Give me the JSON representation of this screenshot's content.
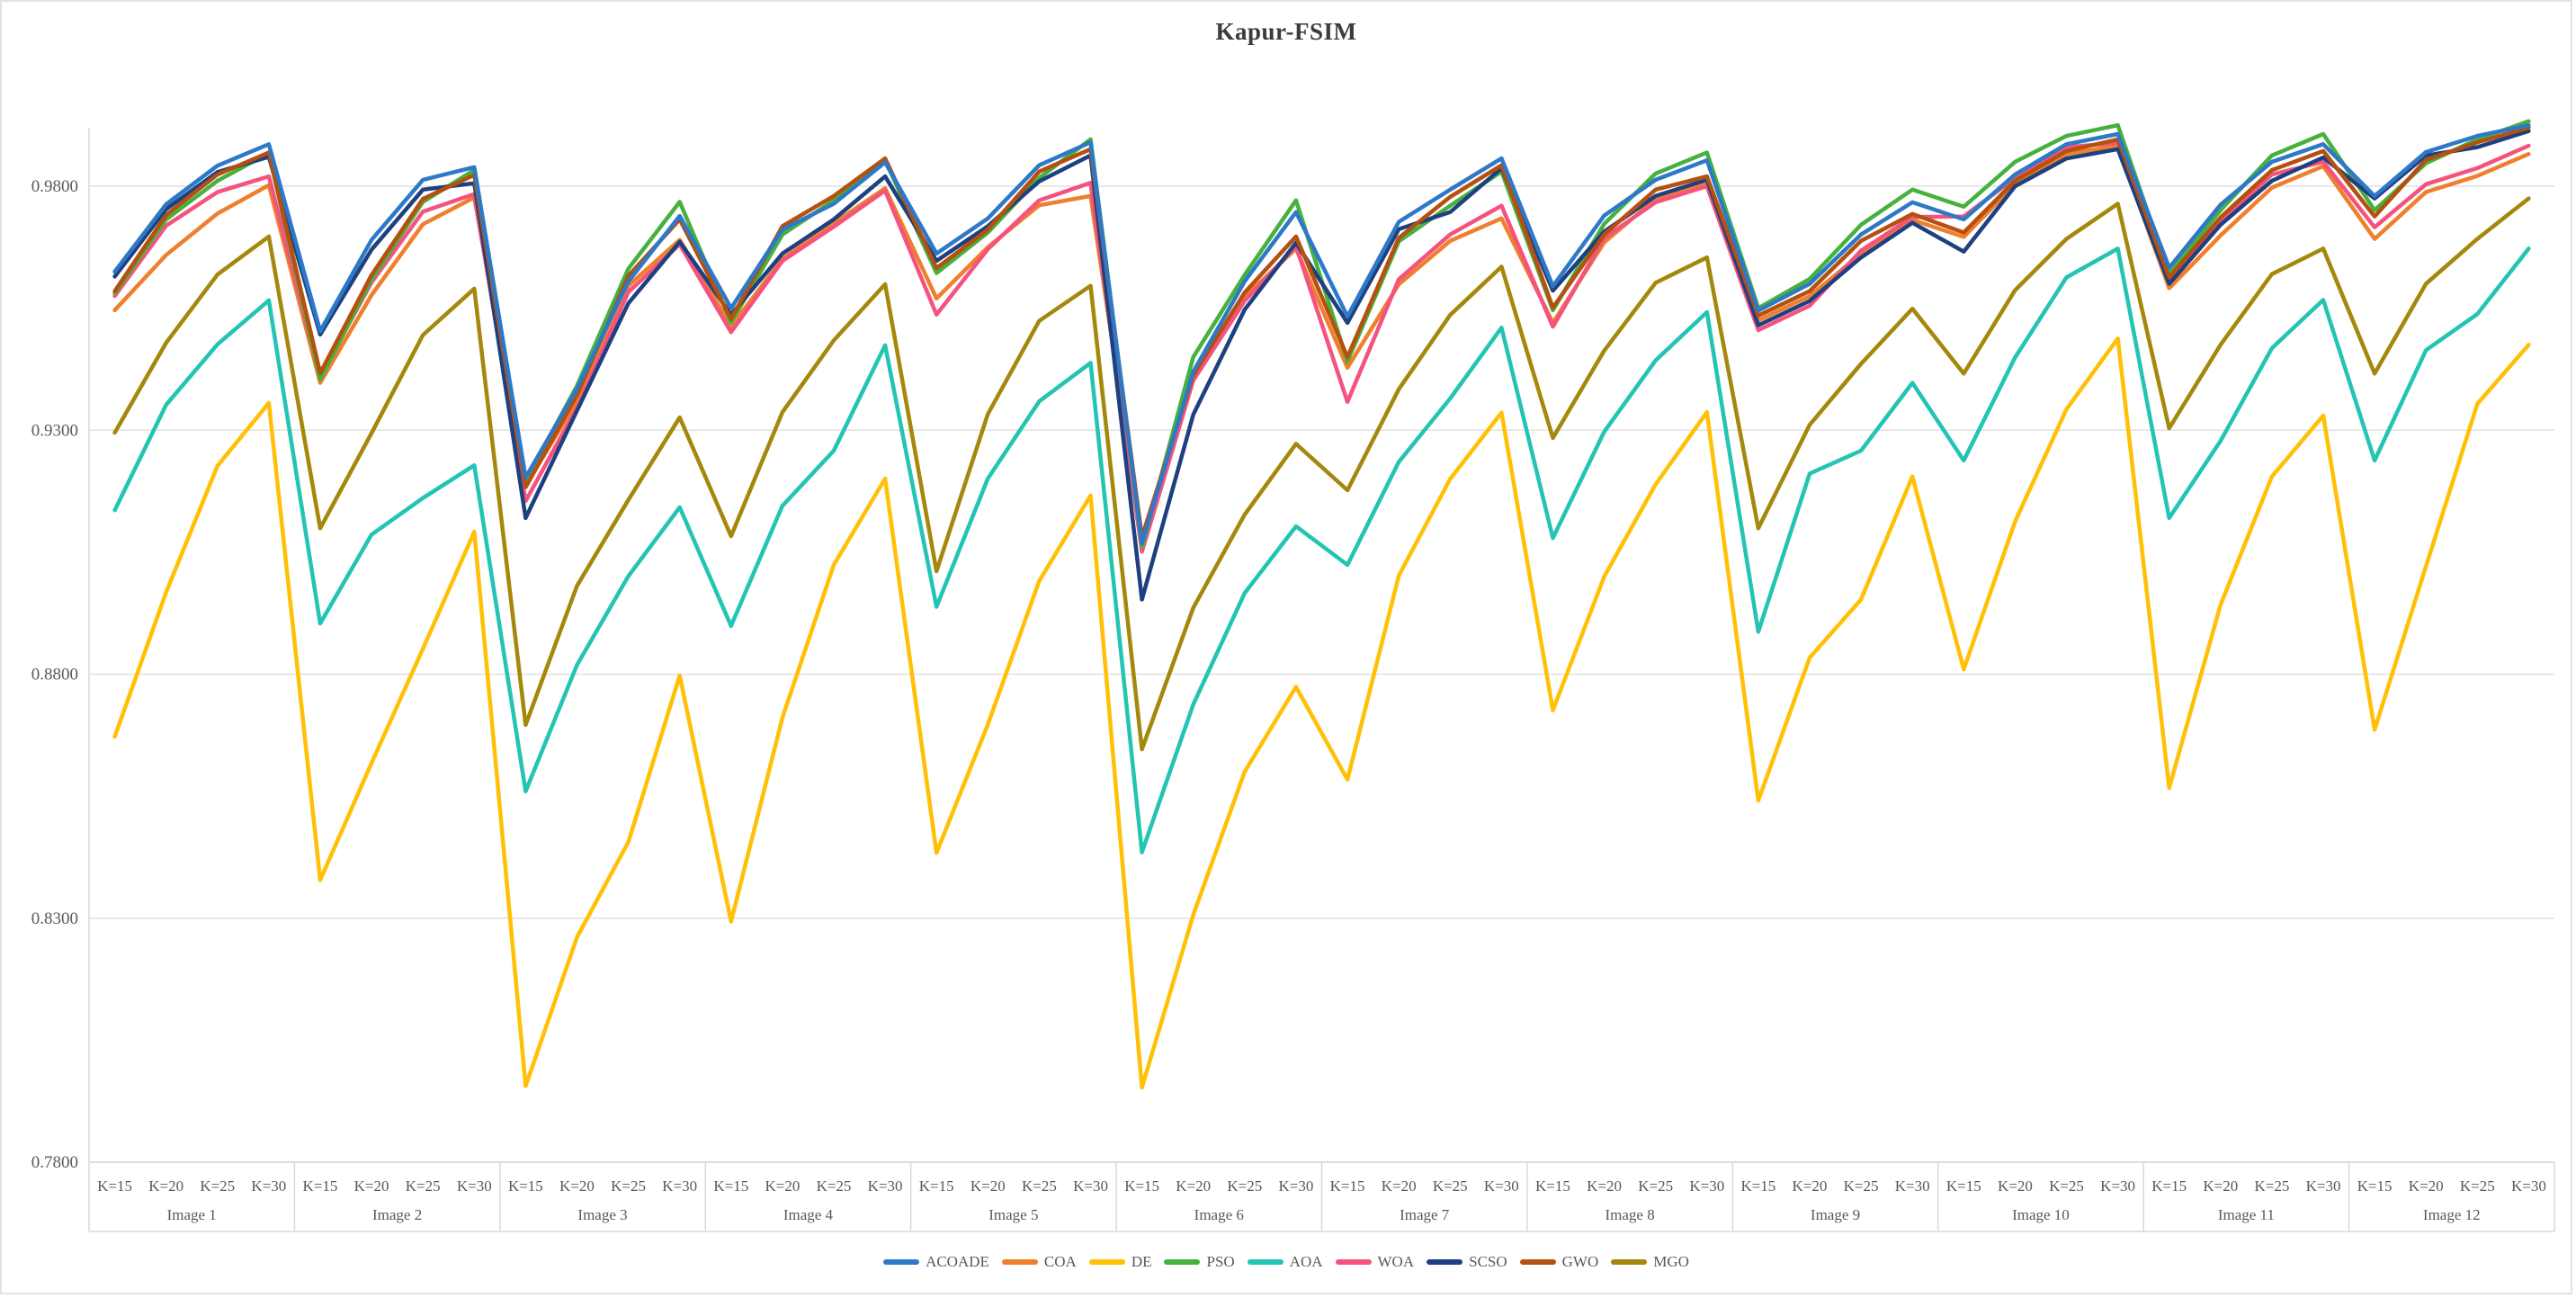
{
  "chart_data": {
    "type": "line",
    "title": "Kapur-FSIM",
    "grid": true,
    "legend_position": "bottom",
    "y_axis": {
      "min": 0.78,
      "max": 0.995,
      "ticks": [
        {
          "label": "0.9800",
          "value": 0.98
        },
        {
          "label": "0.9300",
          "value": 0.93
        },
        {
          "label": "0.8800",
          "value": 0.88
        },
        {
          "label": "0.8300",
          "value": 0.83
        },
        {
          "label": "0.7800",
          "value": 0.78
        }
      ]
    },
    "x_axis": {
      "k_labels": [
        "K=15",
        "K=20",
        "K=25",
        "K=30"
      ],
      "groups": [
        "Image 1",
        "Image 2",
        "Image 3",
        "Image 4",
        "Image 5",
        "Image 6",
        "Image 7",
        "Image 8",
        "Image 9",
        "Image 10",
        "Image 11",
        "Image 12"
      ]
    },
    "series": [
      {
        "name": "ACOADE",
        "color": "#2E79C7",
        "values": [
          0.9625,
          0.9763,
          0.9842,
          0.9886,
          0.9503,
          0.969,
          0.9813,
          0.9839,
          0.9203,
          0.9385,
          0.9605,
          0.9739,
          0.955,
          0.9711,
          0.9764,
          0.9849,
          0.9662,
          0.9734,
          0.9843,
          0.989,
          0.9068,
          0.942,
          0.9605,
          0.9747,
          0.9533,
          0.9727,
          0.9793,
          0.9857,
          0.9595,
          0.974,
          0.9813,
          0.9853,
          0.9545,
          0.96,
          0.9701,
          0.9767,
          0.9732,
          0.9824,
          0.9886,
          0.9907,
          0.9633,
          0.9762,
          0.985,
          0.9886,
          0.978,
          0.987,
          0.9903,
          0.9925
        ]
      },
      {
        "name": "COA",
        "color": "#F07F2D",
        "values": [
          0.9546,
          0.9659,
          0.9744,
          0.9802,
          0.9397,
          0.9577,
          0.9722,
          0.9777,
          0.9187,
          0.9359,
          0.9596,
          0.969,
          0.9513,
          0.9651,
          0.9724,
          0.9796,
          0.957,
          0.9675,
          0.9761,
          0.978,
          0.9072,
          0.9407,
          0.9573,
          0.9672,
          0.9428,
          0.9599,
          0.9688,
          0.9734,
          0.952,
          0.9685,
          0.9774,
          0.9807,
          0.9525,
          0.9575,
          0.9661,
          0.9731,
          0.9696,
          0.9804,
          0.9866,
          0.9883,
          0.9591,
          0.9699,
          0.9797,
          0.9841,
          0.9692,
          0.9788,
          0.9821,
          0.9866
        ]
      },
      {
        "name": "DE",
        "color": "#FFC005",
        "values": [
          0.8672,
          0.8968,
          0.9227,
          0.9356,
          0.8378,
          0.8618,
          0.8852,
          0.9092,
          0.7956,
          0.8261,
          0.8456,
          0.8797,
          0.8293,
          0.8711,
          0.9024,
          0.9201,
          0.8434,
          0.8697,
          0.8991,
          0.9166,
          0.7953,
          0.8307,
          0.86,
          0.8774,
          0.8584,
          0.9002,
          0.92,
          0.9336,
          0.8726,
          0.9,
          0.9189,
          0.9337,
          0.8541,
          0.8834,
          0.8953,
          0.9205,
          0.881,
          0.9113,
          0.9343,
          0.9488,
          0.8567,
          0.8942,
          0.9205,
          0.933,
          0.8686,
          0.9021,
          0.9354,
          0.9475
        ]
      },
      {
        "name": "PSO",
        "color": "#46B13F",
        "values": [
          0.9581,
          0.9732,
          0.9811,
          0.9868,
          0.9404,
          0.9609,
          0.9768,
          0.9833,
          0.9196,
          0.9391,
          0.9631,
          0.9768,
          0.9521,
          0.9701,
          0.9771,
          0.9853,
          0.9622,
          0.9705,
          0.9817,
          0.9896,
          0.9061,
          0.945,
          0.9618,
          0.9771,
          0.9441,
          0.9687,
          0.976,
          0.983,
          0.9546,
          0.9723,
          0.9826,
          0.9869,
          0.955,
          0.961,
          0.9721,
          0.9793,
          0.9758,
          0.985,
          0.9903,
          0.9925,
          0.962,
          0.9751,
          0.9863,
          0.9907,
          0.9751,
          0.9847,
          0.9896,
          0.9933
        ]
      },
      {
        "name": "AOA",
        "color": "#23C4B4",
        "values": [
          0.9136,
          0.9352,
          0.9476,
          0.9566,
          0.8904,
          0.9086,
          0.9161,
          0.9228,
          0.856,
          0.8819,
          0.9001,
          0.9142,
          0.8899,
          0.9145,
          0.9258,
          0.9474,
          0.8938,
          0.9201,
          0.9359,
          0.9438,
          0.8435,
          0.8738,
          0.8966,
          0.9103,
          0.9024,
          0.9235,
          0.9365,
          0.951,
          0.9079,
          0.9297,
          0.9443,
          0.9542,
          0.8887,
          0.9211,
          0.9258,
          0.9397,
          0.9238,
          0.9449,
          0.9613,
          0.9672,
          0.912,
          0.9278,
          0.9468,
          0.9567,
          0.9238,
          0.9464,
          0.9538,
          0.9672
        ]
      },
      {
        "name": "WOA",
        "color": "#F4537E",
        "values": [
          0.9575,
          0.9719,
          0.9788,
          0.982,
          0.941,
          0.9603,
          0.9748,
          0.9784,
          0.9155,
          0.9346,
          0.9583,
          0.9681,
          0.9501,
          0.9647,
          0.9717,
          0.9791,
          0.9537,
          0.9671,
          0.9771,
          0.9807,
          0.9051,
          0.9402,
          0.9565,
          0.9677,
          0.9358,
          0.9609,
          0.9701,
          0.976,
          0.9512,
          0.9694,
          0.9767,
          0.98,
          0.9505,
          0.9555,
          0.9668,
          0.9737,
          0.9738,
          0.9817,
          0.988,
          0.9889,
          0.9607,
          0.9728,
          0.9824,
          0.985,
          0.9716,
          0.9804,
          0.9837,
          0.9883
        ]
      },
      {
        "name": "SCSO",
        "color": "#1E4080",
        "values": [
          0.9615,
          0.9753,
          0.9829,
          0.986,
          0.9496,
          0.967,
          0.9793,
          0.9806,
          0.912,
          0.934,
          0.956,
          0.9686,
          0.9537,
          0.9662,
          0.9732,
          0.982,
          0.9647,
          0.9718,
          0.981,
          0.9863,
          0.8953,
          0.9332,
          0.9547,
          0.9684,
          0.952,
          0.9712,
          0.9747,
          0.9837,
          0.9586,
          0.9707,
          0.978,
          0.9813,
          0.9515,
          0.9565,
          0.9654,
          0.9725,
          0.9666,
          0.98,
          0.9857,
          0.9876,
          0.96,
          0.9721,
          0.9811,
          0.9859,
          0.9775,
          0.9863,
          0.988,
          0.9913
        ]
      },
      {
        "name": "GWO",
        "color": "#B5500F",
        "values": [
          0.9585,
          0.9741,
          0.9824,
          0.9869,
          0.9417,
          0.9618,
          0.9774,
          0.9823,
          0.9183,
          0.9372,
          0.9616,
          0.9732,
          0.9528,
          0.9718,
          0.978,
          0.9857,
          0.9632,
          0.9711,
          0.983,
          0.9876,
          0.9081,
          0.9413,
          0.9582,
          0.9697,
          0.945,
          0.9694,
          0.9778,
          0.9843,
          0.9551,
          0.9701,
          0.9793,
          0.982,
          0.9535,
          0.9585,
          0.9688,
          0.9743,
          0.9705,
          0.9811,
          0.9872,
          0.9896,
          0.9613,
          0.9736,
          0.9833,
          0.9872,
          0.9738,
          0.9854,
          0.989,
          0.992
        ]
      },
      {
        "name": "MGO",
        "color": "#A5880B",
        "values": [
          0.9295,
          0.9479,
          0.9619,
          0.9697,
          0.9099,
          0.9294,
          0.9495,
          0.959,
          0.8696,
          0.8981,
          0.9157,
          0.9326,
          0.9083,
          0.9337,
          0.9484,
          0.9599,
          0.9011,
          0.9333,
          0.9524,
          0.9596,
          0.8646,
          0.8936,
          0.9127,
          0.9272,
          0.9177,
          0.9384,
          0.9536,
          0.9635,
          0.9284,
          0.9463,
          0.9602,
          0.9654,
          0.9099,
          0.9311,
          0.9436,
          0.9549,
          0.9416,
          0.9587,
          0.9692,
          0.9764,
          0.9304,
          0.9475,
          0.962,
          0.9672,
          0.9416,
          0.96,
          0.9692,
          0.9775
        ]
      }
    ],
    "colors": {
      "grid": "#e0e0e0",
      "axis_box": "#d9d9d9",
      "tick_text": "#595959",
      "title_text": "#3b3b3b"
    }
  }
}
